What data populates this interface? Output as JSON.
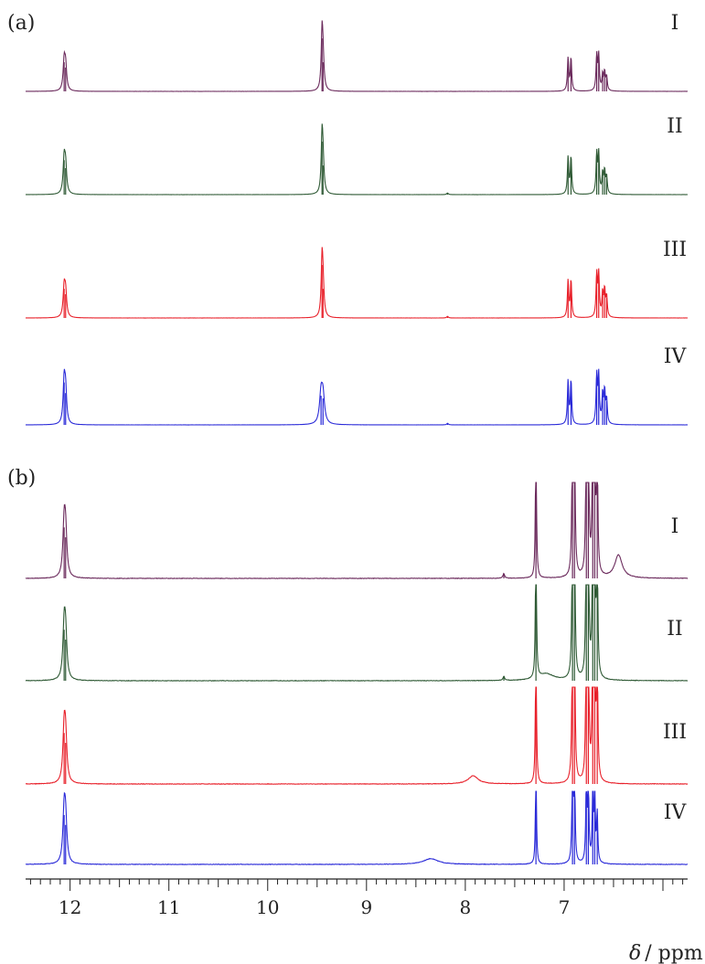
{
  "chart_data": {
    "type": "line",
    "title": "",
    "xlabel": "δ / ppm",
    "xlabel_symbol": "δ",
    "xlabel_unit": "/ ppm",
    "x_reversed": true,
    "xlim": [
      12.45,
      5.75
    ],
    "xticks": [
      12,
      11,
      10,
      9,
      8,
      7
    ],
    "grid": false,
    "panels": [
      {
        "label": "(a)",
        "series": [
          {
            "name": "I",
            "color": "#6b2a5c",
            "peaks": [
              {
                "ppm": 12.06,
                "height": 0.55,
                "width": 0.012
              },
              {
                "ppm": 12.045,
                "height": 0.45,
                "width": 0.012
              },
              {
                "ppm": 9.45,
                "height": 1.0,
                "width": 0.01
              },
              {
                "ppm": 9.44,
                "height": 0.55,
                "width": 0.012
              },
              {
                "ppm": 6.96,
                "height": 0.62,
                "width": 0.008
              },
              {
                "ppm": 6.93,
                "height": 0.62,
                "width": 0.008
              },
              {
                "ppm": 6.67,
                "height": 0.66,
                "width": 0.008
              },
              {
                "ppm": 6.65,
                "height": 0.66,
                "width": 0.008
              },
              {
                "ppm": 6.61,
                "height": 0.3,
                "width": 0.008
              },
              {
                "ppm": 6.59,
                "height": 0.34,
                "width": 0.008
              },
              {
                "ppm": 6.57,
                "height": 0.26,
                "width": 0.008
              }
            ]
          },
          {
            "name": "II",
            "color": "#2f5a35",
            "peaks": [
              {
                "ppm": 12.06,
                "height": 0.65,
                "width": 0.012
              },
              {
                "ppm": 12.045,
                "height": 0.5,
                "width": 0.012
              },
              {
                "ppm": 9.45,
                "height": 1.0,
                "width": 0.01
              },
              {
                "ppm": 9.44,
                "height": 0.55,
                "width": 0.012
              },
              {
                "ppm": 8.18,
                "height": 0.03,
                "width": 0.01
              },
              {
                "ppm": 6.96,
                "height": 0.7,
                "width": 0.008
              },
              {
                "ppm": 6.93,
                "height": 0.7,
                "width": 0.008
              },
              {
                "ppm": 6.67,
                "height": 0.75,
                "width": 0.008
              },
              {
                "ppm": 6.65,
                "height": 0.75,
                "width": 0.008
              },
              {
                "ppm": 6.61,
                "height": 0.38,
                "width": 0.008
              },
              {
                "ppm": 6.59,
                "height": 0.42,
                "width": 0.008
              },
              {
                "ppm": 6.57,
                "height": 0.32,
                "width": 0.008
              }
            ]
          },
          {
            "name": "III",
            "color": "#e8202a",
            "peaks": [
              {
                "ppm": 12.06,
                "height": 0.55,
                "width": 0.012
              },
              {
                "ppm": 12.045,
                "height": 0.45,
                "width": 0.012
              },
              {
                "ppm": 9.45,
                "height": 1.0,
                "width": 0.01
              },
              {
                "ppm": 9.44,
                "height": 0.55,
                "width": 0.012
              },
              {
                "ppm": 8.18,
                "height": 0.03,
                "width": 0.01
              },
              {
                "ppm": 6.96,
                "height": 0.7,
                "width": 0.008
              },
              {
                "ppm": 6.93,
                "height": 0.7,
                "width": 0.008
              },
              {
                "ppm": 6.67,
                "height": 0.8,
                "width": 0.008
              },
              {
                "ppm": 6.65,
                "height": 0.8,
                "width": 0.008
              },
              {
                "ppm": 6.61,
                "height": 0.45,
                "width": 0.008
              },
              {
                "ppm": 6.59,
                "height": 0.5,
                "width": 0.008
              },
              {
                "ppm": 6.57,
                "height": 0.38,
                "width": 0.008
              }
            ]
          },
          {
            "name": "IV",
            "color": "#2a2ad8",
            "peaks": [
              {
                "ppm": 12.06,
                "height": 0.8,
                "width": 0.012
              },
              {
                "ppm": 12.045,
                "height": 0.6,
                "width": 0.012
              },
              {
                "ppm": 9.46,
                "height": 0.55,
                "width": 0.018
              },
              {
                "ppm": 9.44,
                "height": 0.5,
                "width": 0.018
              },
              {
                "ppm": 8.18,
                "height": 0.03,
                "width": 0.01
              },
              {
                "ppm": 6.96,
                "height": 0.82,
                "width": 0.008
              },
              {
                "ppm": 6.93,
                "height": 0.82,
                "width": 0.008
              },
              {
                "ppm": 6.67,
                "height": 0.9,
                "width": 0.008
              },
              {
                "ppm": 6.65,
                "height": 0.9,
                "width": 0.008
              },
              {
                "ppm": 6.61,
                "height": 0.55,
                "width": 0.008
              },
              {
                "ppm": 6.59,
                "height": 0.6,
                "width": 0.008
              },
              {
                "ppm": 6.57,
                "height": 0.45,
                "width": 0.008
              }
            ]
          }
        ]
      },
      {
        "label": "(b)",
        "series": [
          {
            "name": "I",
            "color": "#6b2a5c",
            "peaks": [
              {
                "ppm": 12.06,
                "height": 0.62,
                "width": 0.015
              },
              {
                "ppm": 12.045,
                "height": 0.5,
                "width": 0.015
              },
              {
                "ppm": 7.61,
                "height": 0.06,
                "width": 0.01
              },
              {
                "ppm": 7.285,
                "height": 2.0,
                "width": 0.006
              },
              {
                "ppm": 6.915,
                "height": 2.0,
                "width": 0.007
              },
              {
                "ppm": 6.895,
                "height": 2.0,
                "width": 0.007
              },
              {
                "ppm": 6.775,
                "height": 2.0,
                "width": 0.007
              },
              {
                "ppm": 6.755,
                "height": 2.0,
                "width": 0.007
              },
              {
                "ppm": 6.71,
                "height": 2.0,
                "width": 0.007
              },
              {
                "ppm": 6.69,
                "height": 2.0,
                "width": 0.007
              },
              {
                "ppm": 6.665,
                "height": 1.6,
                "width": 0.007
              },
              {
                "ppm": 6.45,
                "height": 0.28,
                "width": 0.045
              }
            ]
          },
          {
            "name": "II",
            "color": "#2f5a35",
            "peaks": [
              {
                "ppm": 12.06,
                "height": 0.62,
                "width": 0.015
              },
              {
                "ppm": 12.045,
                "height": 0.5,
                "width": 0.015
              },
              {
                "ppm": 7.61,
                "height": 0.05,
                "width": 0.01
              },
              {
                "ppm": 7.285,
                "height": 2.0,
                "width": 0.006
              },
              {
                "ppm": 7.18,
                "height": 0.08,
                "width": 0.09
              },
              {
                "ppm": 6.915,
                "height": 2.0,
                "width": 0.007
              },
              {
                "ppm": 6.895,
                "height": 2.0,
                "width": 0.007
              },
              {
                "ppm": 6.775,
                "height": 2.0,
                "width": 0.007
              },
              {
                "ppm": 6.755,
                "height": 2.0,
                "width": 0.007
              },
              {
                "ppm": 6.71,
                "height": 2.0,
                "width": 0.007
              },
              {
                "ppm": 6.69,
                "height": 2.0,
                "width": 0.007
              },
              {
                "ppm": 6.665,
                "height": 1.6,
                "width": 0.007
              }
            ]
          },
          {
            "name": "III",
            "color": "#e8202a",
            "peaks": [
              {
                "ppm": 12.06,
                "height": 0.62,
                "width": 0.015
              },
              {
                "ppm": 12.045,
                "height": 0.5,
                "width": 0.015
              },
              {
                "ppm": 7.92,
                "height": 0.1,
                "width": 0.06
              },
              {
                "ppm": 7.285,
                "height": 2.0,
                "width": 0.006
              },
              {
                "ppm": 6.915,
                "height": 2.0,
                "width": 0.007
              },
              {
                "ppm": 6.895,
                "height": 2.0,
                "width": 0.007
              },
              {
                "ppm": 6.775,
                "height": 2.0,
                "width": 0.007
              },
              {
                "ppm": 6.755,
                "height": 2.0,
                "width": 0.007
              },
              {
                "ppm": 6.71,
                "height": 2.0,
                "width": 0.007
              },
              {
                "ppm": 6.69,
                "height": 2.0,
                "width": 0.007
              },
              {
                "ppm": 6.665,
                "height": 1.6,
                "width": 0.007
              }
            ]
          },
          {
            "name": "IV",
            "color": "#2a2ad8",
            "peaks": [
              {
                "ppm": 12.06,
                "height": 0.6,
                "width": 0.015
              },
              {
                "ppm": 12.045,
                "height": 0.48,
                "width": 0.015
              },
              {
                "ppm": 8.35,
                "height": 0.07,
                "width": 0.09
              },
              {
                "ppm": 7.285,
                "height": 1.3,
                "width": 0.006
              },
              {
                "ppm": 6.915,
                "height": 1.2,
                "width": 0.007
              },
              {
                "ppm": 6.895,
                "height": 1.2,
                "width": 0.007
              },
              {
                "ppm": 6.775,
                "height": 1.0,
                "width": 0.007
              },
              {
                "ppm": 6.755,
                "height": 1.0,
                "width": 0.007
              },
              {
                "ppm": 6.71,
                "height": 0.85,
                "width": 0.007
              },
              {
                "ppm": 6.69,
                "height": 0.85,
                "width": 0.007
              },
              {
                "ppm": 6.665,
                "height": 0.6,
                "width": 0.007
              }
            ]
          }
        ]
      }
    ]
  }
}
